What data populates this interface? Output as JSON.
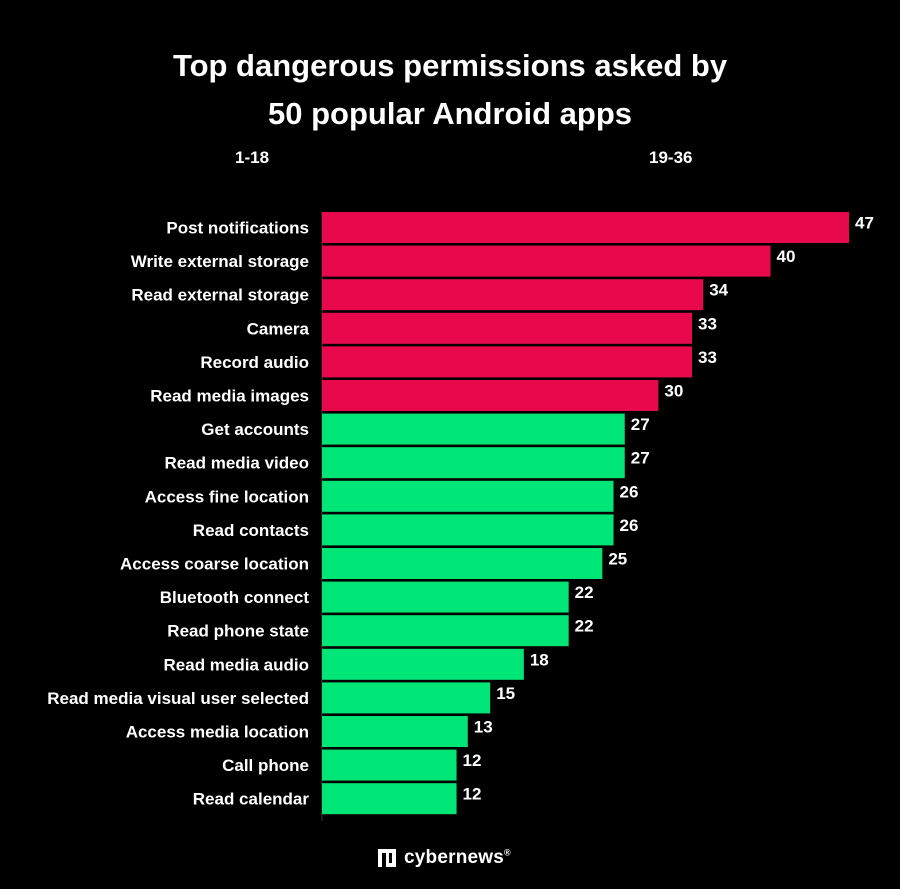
{
  "header": {
    "title_line1": "Top dangerous permissions asked by",
    "title_line2": "50 popular Android apps",
    "range_a": "1-18",
    "range_b": "19-36"
  },
  "colors": {
    "background": "#000000",
    "danger_bar": "#e8094c",
    "normal_bar": "#00e676",
    "text": "#ffffff"
  },
  "chart_data": {
    "type": "bar",
    "orientation": "horizontal",
    "categories": [
      "Post notifications",
      "Write external storage",
      "Read external storage",
      "Camera",
      "Record audio",
      "Read media images",
      "Get accounts",
      "Read media video",
      "Access fine location",
      "Read contacts",
      "Access coarse location",
      "Bluetooth connect",
      "Read phone state",
      "Read media audio",
      "Read media visual user selected",
      "Access media location",
      "Call phone",
      "Read calendar"
    ],
    "values": [
      47,
      40,
      34,
      33,
      33,
      30,
      27,
      27,
      26,
      26,
      25,
      22,
      22,
      18,
      15,
      13,
      12,
      12
    ],
    "highlight_count": 6,
    "xlim": [
      0,
      47
    ],
    "grid": false,
    "data_labels": true
  },
  "brand": {
    "name": "cybernews",
    "mark": "®",
    "icon": "cybernews-logo-icon"
  }
}
